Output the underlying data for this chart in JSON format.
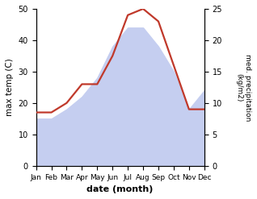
{
  "months": [
    "Jan",
    "Feb",
    "Mar",
    "Apr",
    "May",
    "Jun",
    "Jul",
    "Aug",
    "Sep",
    "Oct",
    "Nov",
    "Dec"
  ],
  "temperature": [
    17,
    17,
    20,
    26,
    26,
    35,
    48,
    50,
    46,
    32,
    18,
    18
  ],
  "precipitation": [
    7.5,
    7.5,
    9,
    11,
    14,
    19,
    22,
    22,
    19,
    15,
    9,
    12
  ],
  "temp_color": "#c0392b",
  "precip_fill_color": "#c5cef0",
  "temp_ylim": [
    0,
    50
  ],
  "precip_ylim": [
    0,
    25
  ],
  "xlabel": "date (month)",
  "ylabel_left": "max temp (C)",
  "ylabel_right": "med. precipitation\n(kg/m2)",
  "bg_color": "#ffffff",
  "line_width": 1.6
}
